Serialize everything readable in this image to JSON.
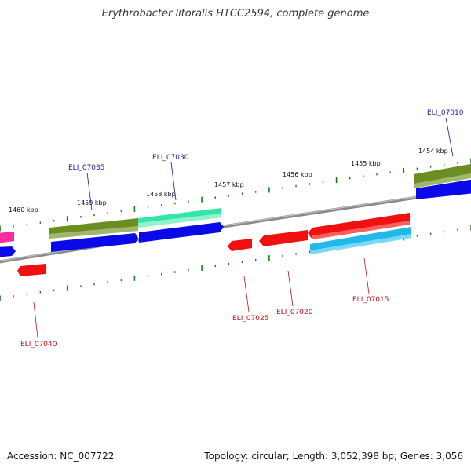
{
  "title": "Erythrobacter litoralis HTCC2594, complete genome",
  "footer": {
    "accession": "Accession: NC_007722",
    "summary": "Topology: circular; Length: 3,052,398 bp; Genes: 3,056"
  },
  "colors": {
    "backbone": "#8a8a8a",
    "tick": "#1a7a1a",
    "label_forward": "#1a1aa0",
    "label_reverse": "#c01010",
    "olive": "#6b8e23",
    "blue": "#0a0ae8",
    "teal": "#33e6a6",
    "red": "#f01010",
    "cyan": "#22b8e8",
    "pink": "#ff2aa0"
  },
  "ticks": [
    {
      "label": "1454 kbp"
    },
    {
      "label": "1455 kbp"
    },
    {
      "label": "1456 kbp"
    },
    {
      "label": "1457 kbp"
    },
    {
      "label": "1458 kbp"
    },
    {
      "label": "1459 kbp"
    },
    {
      "label": "1460 kbp"
    }
  ],
  "genes": [
    {
      "name": "ELI_07010",
      "strand": "forward"
    },
    {
      "name": "ELI_07015",
      "strand": "reverse"
    },
    {
      "name": "ELI_07020",
      "strand": "reverse"
    },
    {
      "name": "ELI_07025",
      "strand": "reverse"
    },
    {
      "name": "ELI_07030",
      "strand": "forward"
    },
    {
      "name": "ELI_07035",
      "strand": "forward"
    },
    {
      "name": "ELI_07040",
      "strand": "reverse"
    }
  ]
}
